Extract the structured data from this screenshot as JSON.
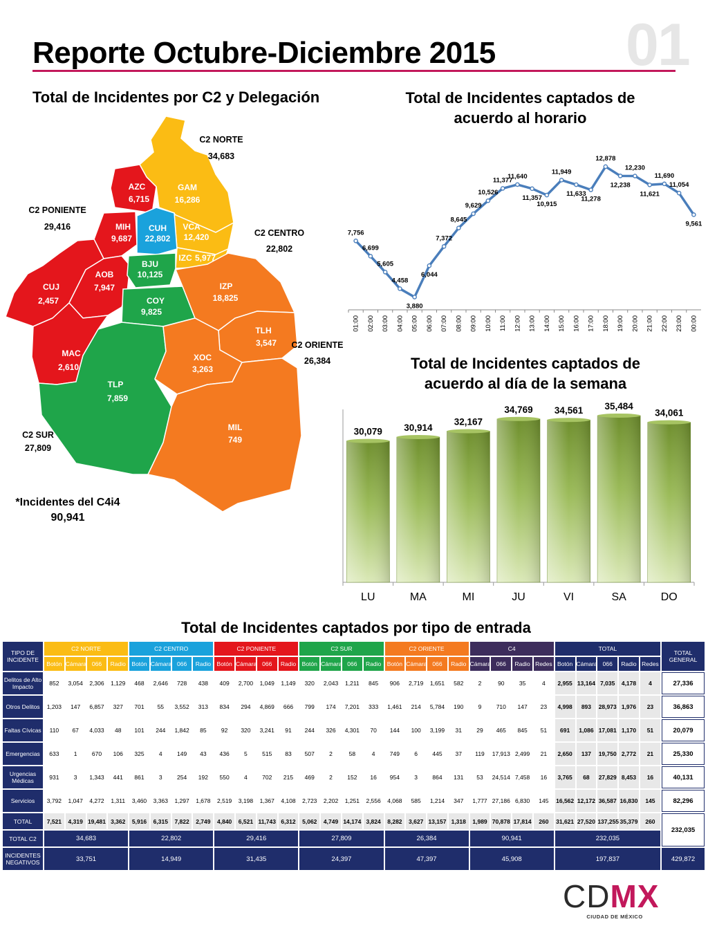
{
  "header": {
    "title": "Reporte Octubre-Diciembre 2015",
    "page_number": "01"
  },
  "colors": {
    "accent": "#c2185b",
    "navy": "#1f2d6b",
    "line": "#4a7ebb",
    "bar": "#9bbb59"
  },
  "map": {
    "title": "Total de Incidentes por C2 y Delegación",
    "regions": [
      {
        "name": "C2 NORTE",
        "value": "34,683"
      },
      {
        "name": "C2 PONIENTE",
        "value": "29,416"
      },
      {
        "name": "C2 CENTRO",
        "value": "22,802"
      },
      {
        "name": "C2 ORIENTE",
        "value": "26,384"
      },
      {
        "name": "C2 SUR",
        "value": "27,809"
      }
    ],
    "delegaciones": [
      {
        "code": "GAM",
        "value": "16,286"
      },
      {
        "code": "AZC",
        "value": "6,715"
      },
      {
        "code": "MIH",
        "value": "9,687"
      },
      {
        "code": "CUH",
        "value": "22,802"
      },
      {
        "code": "VCA",
        "value": "12,420"
      },
      {
        "code": "IZC",
        "value": "5,977"
      },
      {
        "code": "BJU",
        "value": "10,125"
      },
      {
        "code": "AOB",
        "value": "7,947"
      },
      {
        "code": "CUJ",
        "value": "2,457"
      },
      {
        "code": "COY",
        "value": "9,825"
      },
      {
        "code": "IZP",
        "value": "18,825"
      },
      {
        "code": "TLH",
        "value": "3,547"
      },
      {
        "code": "MAC",
        "value": "2,610"
      },
      {
        "code": "XOC",
        "value": "3,263"
      },
      {
        "code": "TLP",
        "value": "7,859"
      },
      {
        "code": "MIL",
        "value": "749"
      }
    ],
    "c4_label": "*Incidentes del C4i4",
    "c4_value": "90,941"
  },
  "hour_chart": {
    "title": "Total de Incidentes captados de acuerdo al horario"
  },
  "day_chart": {
    "title": "Total de Incidentes captados de acuerdo al día de la semana"
  },
  "chart_data": [
    {
      "type": "line",
      "title": "Total de Incidentes captados de acuerdo al horario",
      "x": [
        "01:00",
        "02:00",
        "03:00",
        "04:00",
        "05:00",
        "06:00",
        "07:00",
        "08:00",
        "09:00",
        "10:00",
        "11:00",
        "12:00",
        "13:00",
        "14:00",
        "15:00",
        "16:00",
        "17:00",
        "18:00",
        "19:00",
        "20:00",
        "21:00",
        "22:00",
        "23:00",
        "00:00"
      ],
      "values": [
        7756,
        6699,
        5605,
        4458,
        3880,
        6044,
        7372,
        8645,
        9629,
        10526,
        11377,
        11640,
        11357,
        10915,
        11949,
        11633,
        11278,
        12878,
        12238,
        12230,
        11621,
        11690,
        11054,
        9561
      ],
      "labels": [
        "7,756",
        "6,699",
        "5,605",
        "4,458",
        "3,880",
        "6,044",
        "7,372",
        "8,645",
        "9,629",
        "10,526",
        "11,377",
        "11,640",
        "11,357",
        "10,915",
        "11,949",
        "11,633",
        "11,278",
        "12,878",
        "12,238",
        "12,230",
        "11,621",
        "11,690",
        "11,054",
        "9,561"
      ],
      "ylim": [
        0,
        13500
      ],
      "grid": false,
      "color": "#4a7ebb"
    },
    {
      "type": "bar",
      "title": "Total de Incidentes captados de acuerdo al día de la semana",
      "categories": [
        "LU",
        "MA",
        "MI",
        "JU",
        "VI",
        "SA",
        "DO"
      ],
      "values": [
        30079,
        30914,
        32167,
        34769,
        34561,
        35484,
        34061
      ],
      "labels": [
        "30,079",
        "30,914",
        "32,167",
        "34,769",
        "34,561",
        "35,484",
        "34,061"
      ],
      "ylim": [
        0,
        38000
      ],
      "grid": false,
      "color": "#9bbb59"
    },
    {
      "type": "table",
      "title": "Total de Incidentes captados por tipo de entrada",
      "corner_header": "TIPO DE INCIDENTE",
      "groups": [
        {
          "name": "C2 NORTE",
          "cols": [
            "Botón",
            "Cámara",
            "066",
            "Radio"
          ]
        },
        {
          "name": "C2 CENTRO",
          "cols": [
            "Botón",
            "Cámara",
            "066",
            "Radio"
          ]
        },
        {
          "name": "C2 PONIENTE",
          "cols": [
            "Botón",
            "Cámara",
            "066",
            "Radio"
          ]
        },
        {
          "name": "C2 SUR",
          "cols": [
            "Botón",
            "Cámara",
            "066",
            "Radio"
          ]
        },
        {
          "name": "C2 ORIENTE",
          "cols": [
            "Botón",
            "Cámara",
            "066",
            "Radio"
          ]
        },
        {
          "name": "C4",
          "cols": [
            "Cámara",
            "066",
            "Radio",
            "Redes"
          ]
        },
        {
          "name": "TOTAL",
          "cols": [
            "Botón",
            "Cámara",
            "066",
            "Radio",
            "Redes"
          ]
        }
      ],
      "total_general_header": "TOTAL GENERAL",
      "rows": [
        {
          "name": "Delitos de Alto Impacto",
          "cells": [
            "852",
            "3,054",
            "2,306",
            "1,129",
            "468",
            "2,646",
            "728",
            "438",
            "409",
            "2,700",
            "1,049",
            "1,149",
            "320",
            "2,043",
            "1,211",
            "845",
            "906",
            "2,719",
            "1,651",
            "582",
            "2",
            "90",
            "35",
            "4",
            "2,955",
            "13,164",
            "7,035",
            "4,178",
            "4"
          ],
          "total": "27,336"
        },
        {
          "name": "Otros Delitos",
          "cells": [
            "1,203",
            "147",
            "6,857",
            "327",
            "701",
            "55",
            "3,552",
            "313",
            "834",
            "294",
            "4,869",
            "666",
            "799",
            "174",
            "7,201",
            "333",
            "1,461",
            "214",
            "5,784",
            "190",
            "9",
            "710",
            "147",
            "23",
            "4,998",
            "893",
            "28,973",
            "1,976",
            "23"
          ],
          "total": "36,863"
        },
        {
          "name": "Faltas Cívicas",
          "cells": [
            "110",
            "67",
            "4,033",
            "48",
            "101",
            "244",
            "1,842",
            "85",
            "92",
            "320",
            "3,241",
            "91",
            "244",
            "326",
            "4,301",
            "70",
            "144",
            "100",
            "3,199",
            "31",
            "29",
            "465",
            "845",
            "51",
            "691",
            "1,086",
            "17,081",
            "1,170",
            "51"
          ],
          "total": "20,079"
        },
        {
          "name": "Emergencias",
          "cells": [
            "633",
            "1",
            "670",
            "106",
            "325",
            "4",
            "149",
            "43",
            "436",
            "5",
            "515",
            "83",
            "507",
            "2",
            "58",
            "4",
            "749",
            "6",
            "445",
            "37",
            "119",
            "17,913",
            "2,499",
            "21",
            "2,650",
            "137",
            "19,750",
            "2,772",
            "21"
          ],
          "total": "25,330"
        },
        {
          "name": "Urgencias Médicas",
          "cells": [
            "931",
            "3",
            "1,343",
            "441",
            "861",
            "3",
            "254",
            "192",
            "550",
            "4",
            "702",
            "215",
            "469",
            "2",
            "152",
            "16",
            "954",
            "3",
            "864",
            "131",
            "53",
            "24,514",
            "7,458",
            "16",
            "3,765",
            "68",
            "27,829",
            "8,453",
            "16"
          ],
          "total": "40,131"
        },
        {
          "name": "Servicios",
          "cells": [
            "3,792",
            "1,047",
            "4,272",
            "1,311",
            "3,460",
            "3,363",
            "1,297",
            "1,678",
            "2,519",
            "3,198",
            "1,367",
            "4,108",
            "2,723",
            "2,202",
            "1,251",
            "2,556",
            "4,068",
            "585",
            "1,214",
            "347",
            "1,777",
            "27,186",
            "6,830",
            "145",
            "16,562",
            "12,172",
            "36,587",
            "16,830",
            "145"
          ],
          "total": "82,296"
        }
      ],
      "total_row": {
        "name": "TOTAL",
        "cells": [
          "7,521",
          "4,319",
          "19,481",
          "3,362",
          "5,916",
          "6,315",
          "7,822",
          "2,749",
          "4,840",
          "6,521",
          "11,743",
          "6,312",
          "5,062",
          "4,749",
          "14,174",
          "3,824",
          "8,282",
          "3,627",
          "13,157",
          "1,318",
          "1,989",
          "70,878",
          "17,814",
          "260",
          "31,621",
          "27,520",
          "137,255",
          "35,379",
          "260"
        ]
      },
      "total_c2_row": {
        "name": "TOTAL C2",
        "cells": [
          "34,683",
          "22,802",
          "29,416",
          "27,809",
          "26,384",
          "90,941",
          "232,035"
        ]
      },
      "grand_total": "232,035",
      "negativos_row": {
        "name": "INCIDENTES NEGATIVOS",
        "cells": [
          "33,751",
          "14,949",
          "31,435",
          "24,397",
          "47,397",
          "45,908",
          "197,837"
        ],
        "total": "429,872"
      }
    }
  ],
  "logo": {
    "text_cd": "CD",
    "text_mx": "MX",
    "subtitle": "CIUDAD DE MÉXICO"
  }
}
